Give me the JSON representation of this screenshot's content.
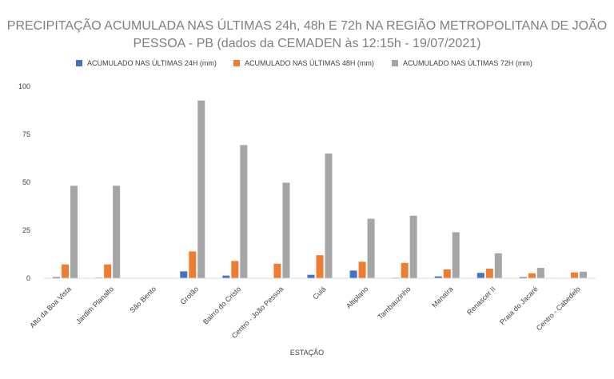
{
  "chart_data": {
    "type": "bar",
    "title_line1": "PRECIPITAÇÃO ACUMULADA NAS ÚLTIMAS 24h, 48h E 72h NA REGIÃO METROPOLITANA DE JOÃO",
    "title_line2": "PESSOA - PB (dados da CEMADEN às 12:15h - 19/07/2021)",
    "xlabel": "ESTAÇÃO",
    "ylabel": "",
    "ylim": [
      0,
      100
    ],
    "yticks": [
      0,
      25,
      50,
      75,
      100
    ],
    "grid": false,
    "legend_position": "top",
    "categories": [
      "Alto da Boa Vista",
      "Jardim Planalto",
      "São Bento",
      "Grotão",
      "Bairro do Cristo",
      "Centro - João Pessoa",
      "Cuiá",
      "Altiplano",
      "Tambauzinho",
      "Manaíra",
      "Renascer II",
      "Praia do Jacaré",
      "Centro - Cabedelo"
    ],
    "series": [
      {
        "name": "ACUMULADO NAS ÚLTIMAS 24H (mm)",
        "color": "#4472c4",
        "values": [
          0.6,
          0.3,
          0,
          3.6,
          1.4,
          0,
          1.8,
          4.0,
          0.3,
          1.0,
          2.8,
          0.6,
          0
        ]
      },
      {
        "name": "ACUMULADO NAS ÚLTIMAS 48H (mm)",
        "color": "#ed7d31",
        "values": [
          7.2,
          7.2,
          0,
          14.0,
          9.0,
          7.6,
          12.0,
          8.6,
          8.0,
          4.6,
          5.0,
          2.6,
          3.0
        ]
      },
      {
        "name": "ACUMULADO NAS ÚLTIMAS 72H (mm)",
        "color": "#a5a5a5",
        "values": [
          48.2,
          48.2,
          0,
          92.6,
          69.4,
          49.8,
          65.0,
          31.0,
          32.6,
          24.0,
          13.0,
          5.4,
          3.4
        ]
      }
    ]
  }
}
